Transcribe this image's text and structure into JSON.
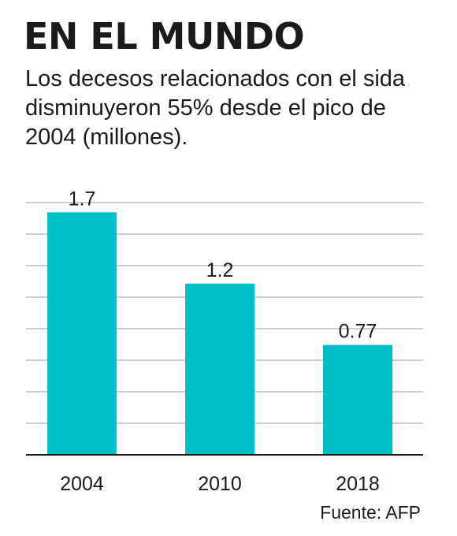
{
  "header": {
    "title": "EN EL MUNDO",
    "subtitle_lines": [
      "Los decesos relacionados con el sida",
      "disminuyeron 55% desde el pico de",
      "2004 (millones)."
    ]
  },
  "footer": {
    "source": "Fuente: AFP"
  },
  "colors": {
    "bar": "#00bfc9",
    "grid": "#b9bcc4",
    "baseline": "#1a1a1a",
    "text": "#1a1a1a"
  },
  "chart_data": {
    "type": "bar",
    "title": "EN EL MUNDO",
    "subtitle": "Los decesos relacionados con el sida disminuyeron 55% desde el pico de 2004 (millones).",
    "categories": [
      "2004",
      "2010",
      "2018"
    ],
    "values": [
      1.7,
      1.2,
      0.77
    ],
    "value_labels": [
      "1.7",
      "1.2",
      "0.77"
    ],
    "xlabel": "",
    "ylabel": "",
    "ylim": [
      0,
      1.9
    ],
    "grid": true,
    "legend": "none"
  }
}
